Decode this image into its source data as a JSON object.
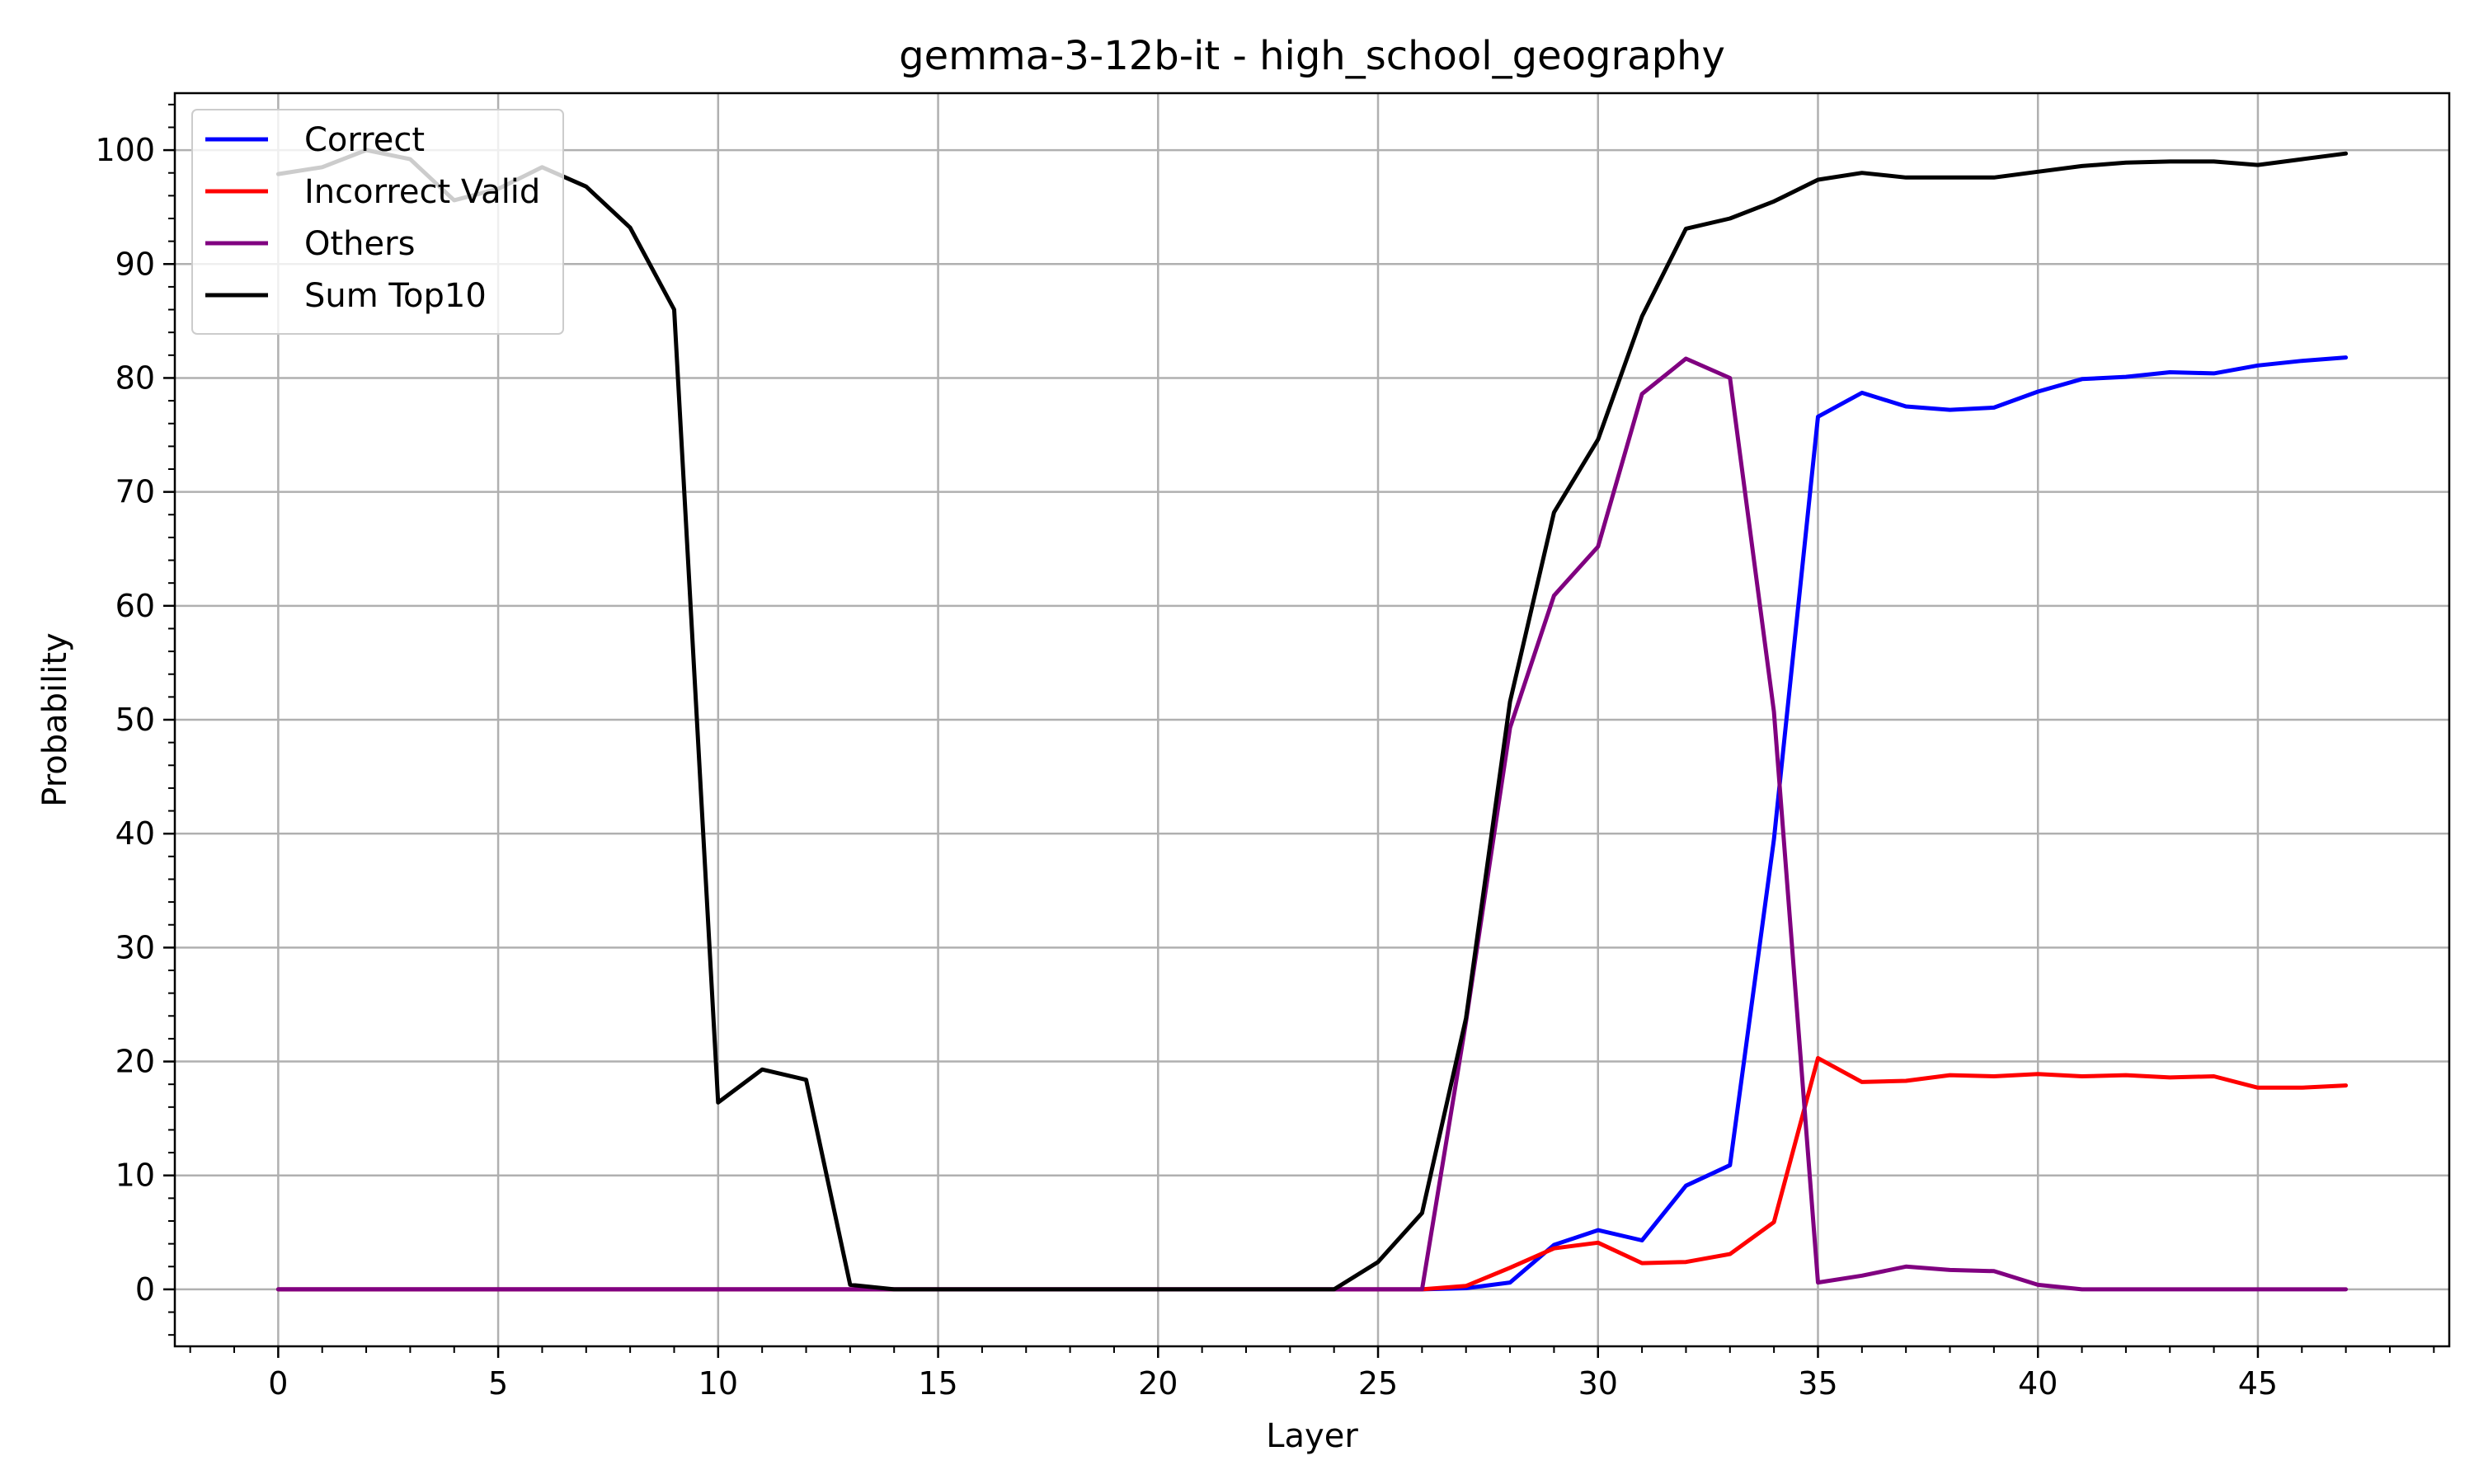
{
  "chart_data": {
    "type": "line",
    "title": "gemma-3-12b-it - high_school_geography",
    "xlabel": "Layer",
    "ylabel": "Probability",
    "xlim": [
      -2.35,
      49.35
    ],
    "ylim": [
      -5,
      105
    ],
    "xticks": [
      0,
      5,
      10,
      15,
      20,
      25,
      30,
      35,
      40,
      45
    ],
    "yticks": [
      0,
      10,
      20,
      30,
      40,
      50,
      60,
      70,
      80,
      90,
      100
    ],
    "grid": true,
    "legend_position": "upper-left",
    "x": [
      0,
      1,
      2,
      3,
      4,
      5,
      6,
      7,
      8,
      9,
      10,
      11,
      12,
      13,
      14,
      15,
      16,
      17,
      18,
      19,
      20,
      21,
      22,
      23,
      24,
      25,
      26,
      27,
      28,
      29,
      30,
      31,
      32,
      33,
      34,
      35,
      36,
      37,
      38,
      39,
      40,
      41,
      42,
      43,
      44,
      45,
      46,
      47
    ],
    "series": [
      {
        "name": "Correct",
        "color": "#0000ff",
        "values": [
          0,
          0,
          0,
          0,
          0,
          0,
          0,
          0,
          0,
          0,
          0,
          0,
          0,
          0,
          0,
          0,
          0,
          0,
          0,
          0,
          0,
          0,
          0,
          0,
          0,
          0,
          0,
          0.1,
          0.6,
          3.9,
          5.2,
          4.3,
          9.1,
          10.9,
          39.5,
          76.6,
          78.7,
          77.5,
          77.2,
          77.4,
          78.8,
          79.9,
          80.1,
          80.5,
          80.4,
          81.1,
          81.5,
          81.8
        ]
      },
      {
        "name": "Incorrect Valid",
        "color": "#ff0000",
        "values": [
          0,
          0,
          0,
          0,
          0,
          0,
          0,
          0,
          0,
          0,
          0,
          0,
          0,
          0,
          0,
          0,
          0,
          0,
          0,
          0,
          0,
          0,
          0,
          0,
          0,
          0,
          0,
          0.3,
          1.9,
          3.6,
          4.1,
          2.3,
          2.4,
          3.1,
          5.9,
          20.3,
          18.2,
          18.3,
          18.8,
          18.7,
          18.9,
          18.7,
          18.8,
          18.6,
          18.7,
          17.7,
          17.7,
          17.9
        ]
      },
      {
        "name": "Others",
        "color": "#800080",
        "values": [
          0,
          0,
          0,
          0,
          0,
          0,
          0,
          0,
          0,
          0,
          0,
          0,
          0,
          0,
          0,
          0,
          0,
          0,
          0,
          0,
          0,
          0,
          0,
          0,
          0,
          0,
          0,
          23.5,
          49.3,
          60.9,
          65.2,
          78.6,
          81.7,
          80.0,
          50.7,
          0.6,
          1.2,
          2.0,
          1.7,
          1.6,
          0.4,
          0,
          0,
          0,
          0,
          0,
          0,
          0
        ]
      },
      {
        "name": "Sum Top10",
        "color": "#000000",
        "values": [
          97.9,
          98.5,
          100.0,
          99.2,
          95.6,
          96.6,
          98.5,
          96.8,
          93.2,
          86.0,
          16.4,
          19.3,
          18.4,
          0.4,
          0,
          0,
          0,
          0,
          0,
          0,
          0,
          0,
          0,
          0,
          0,
          2.4,
          6.7,
          23.8,
          51.6,
          68.2,
          74.6,
          85.4,
          93.1,
          94.0,
          95.5,
          97.4,
          98.0,
          97.6,
          97.6,
          97.6,
          98.1,
          98.6,
          98.9,
          99.0,
          99.0,
          98.7,
          99.2,
          99.7
        ]
      }
    ]
  }
}
